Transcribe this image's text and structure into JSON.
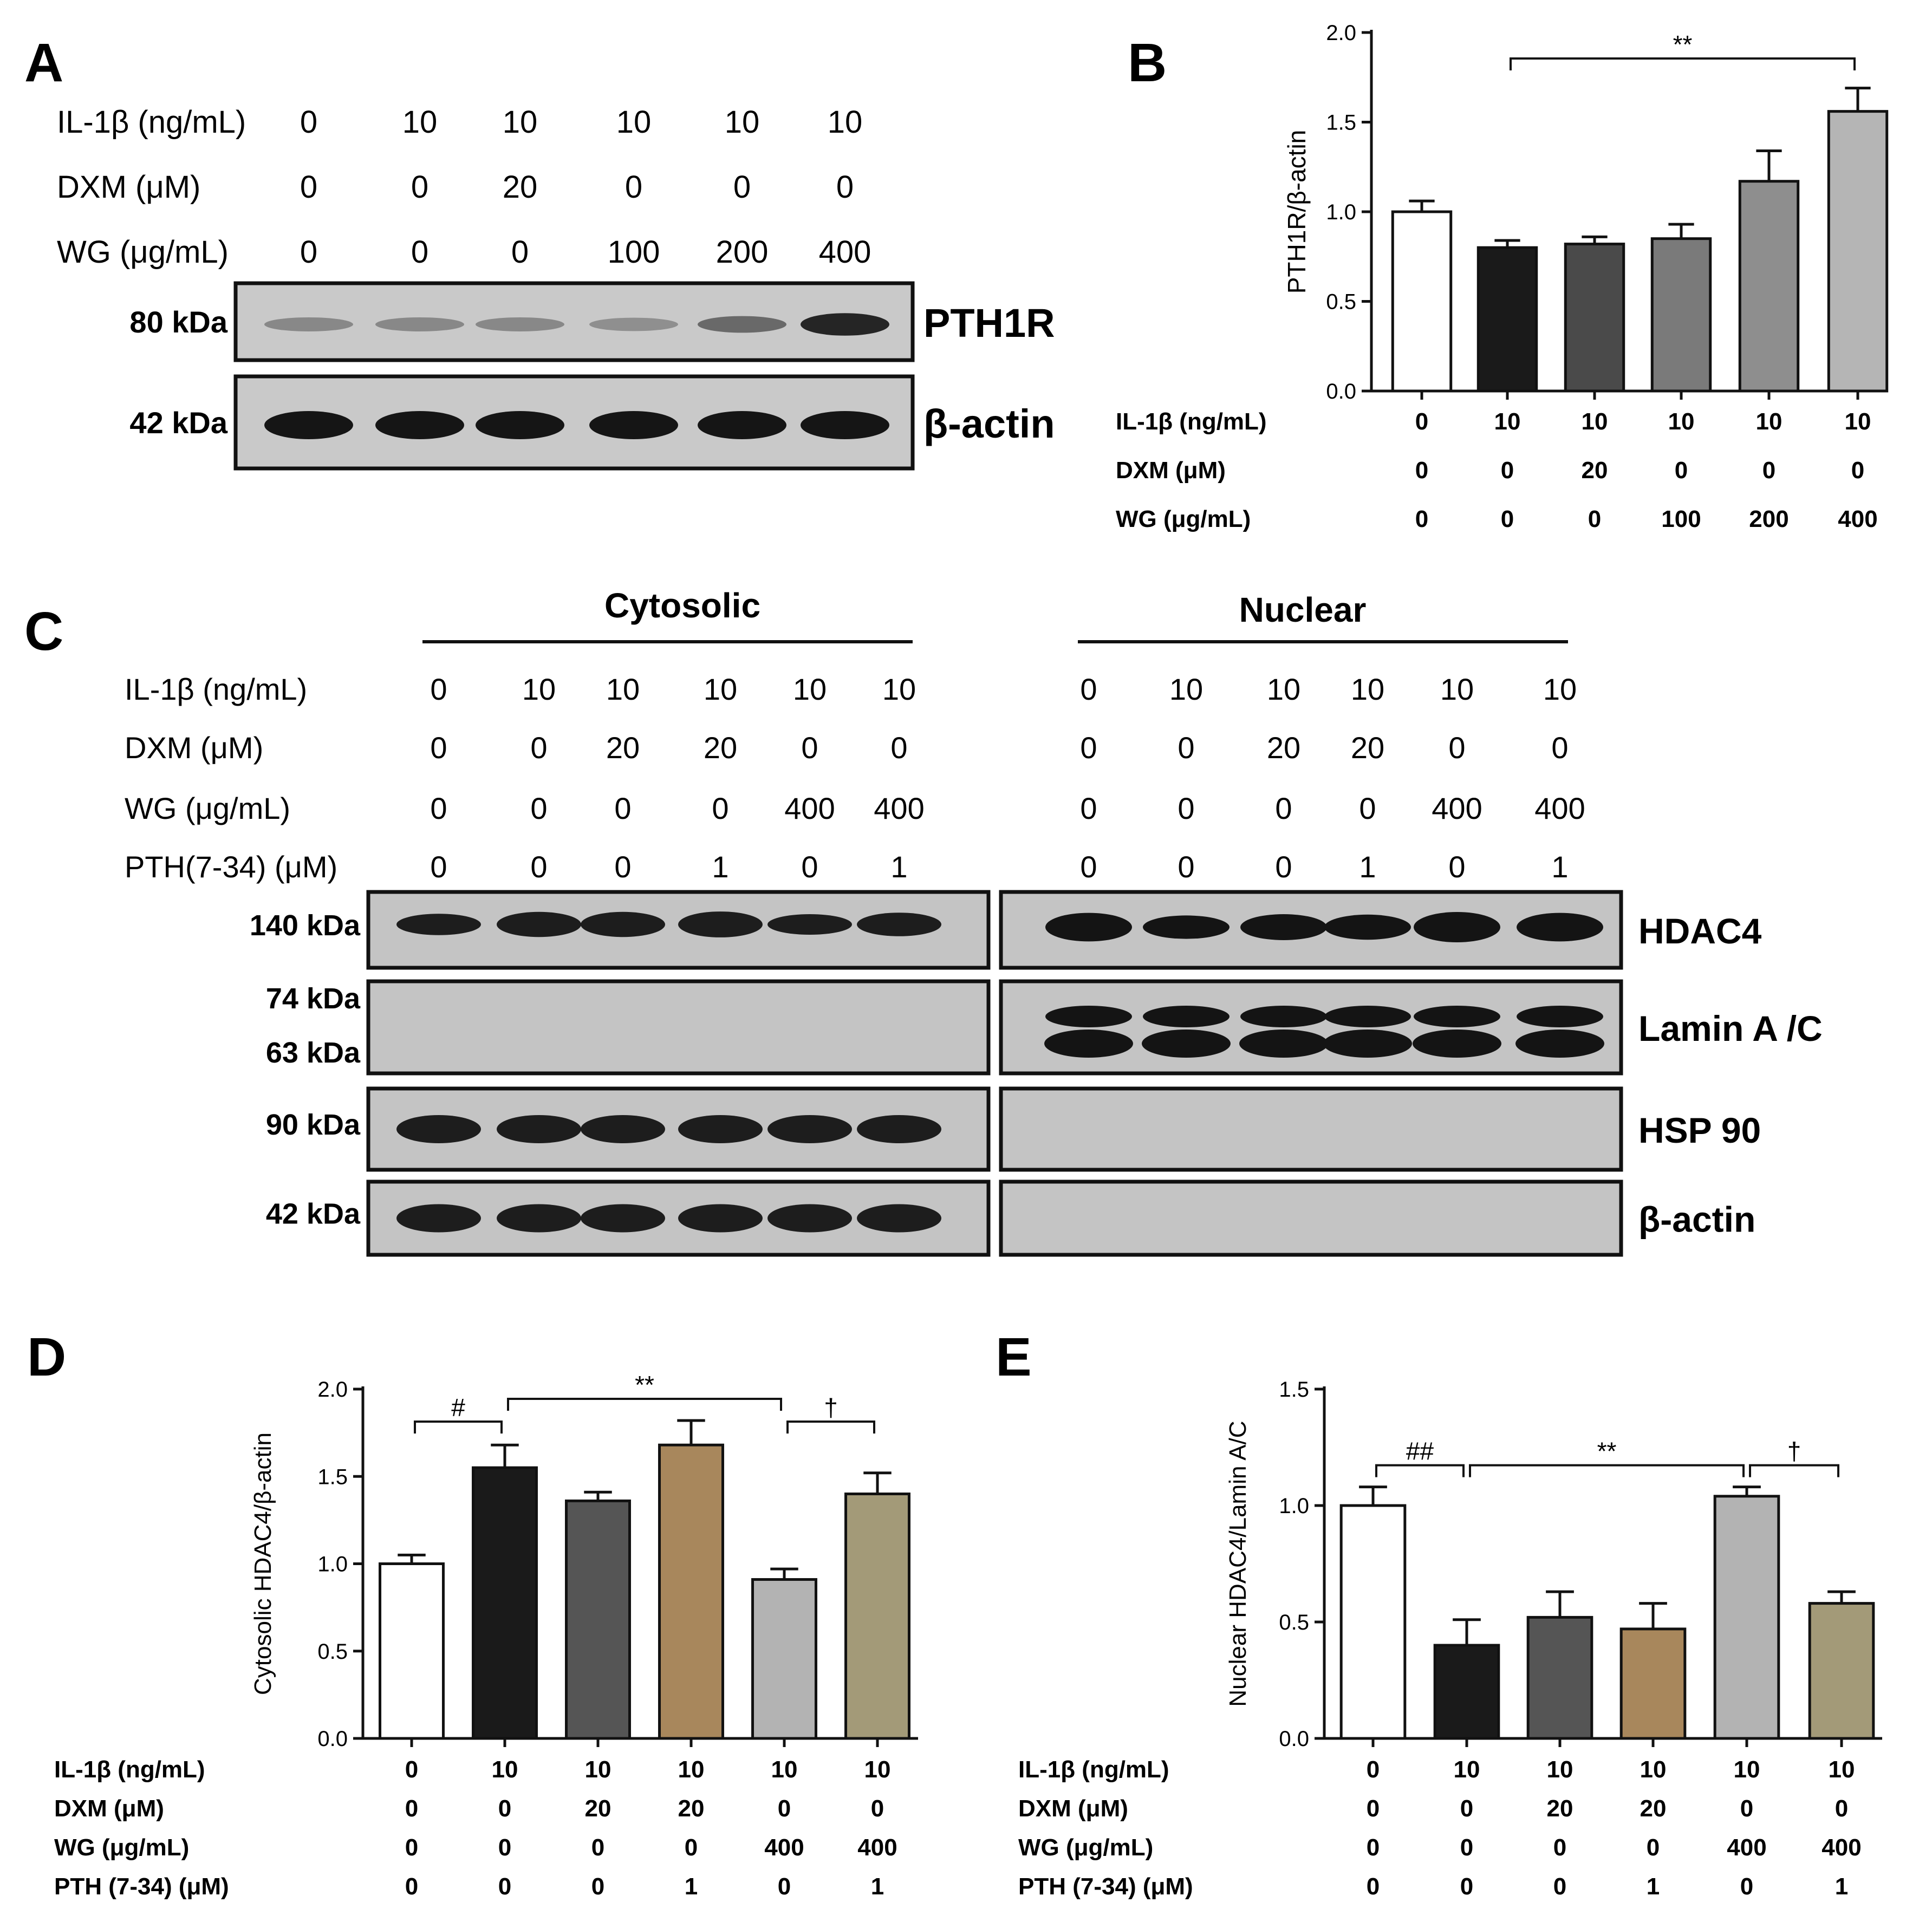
{
  "panel_letters": {
    "a": "A",
    "b": "B",
    "c": "C",
    "d": "D",
    "e": "E"
  },
  "panel_a": {
    "rows": [
      {
        "label": "IL-1β (ng/mL)",
        "values": [
          "0",
          "10",
          "10",
          "10",
          "10",
          "10"
        ]
      },
      {
        "label": "DXM (μM)",
        "values": [
          "0",
          "0",
          "20",
          "0",
          "0",
          "0"
        ]
      },
      {
        "label": "WG (μg/mL)",
        "values": [
          "0",
          "0",
          "0",
          "100",
          "200",
          "400"
        ]
      }
    ],
    "blots": [
      {
        "kda": "80 kDa",
        "protein": "PTH1R",
        "intensities": [
          0.25,
          0.25,
          0.25,
          0.2,
          0.45,
          0.9
        ]
      },
      {
        "kda": "42 kDa",
        "protein": "β-actin",
        "intensities": [
          1,
          1,
          1,
          1,
          1,
          1
        ]
      }
    ]
  },
  "panel_c": {
    "headers": {
      "left": "Cytosolic",
      "right": "Nuclear"
    },
    "rows": [
      {
        "label": "IL-1β (ng/mL)",
        "values": [
          "0",
          "10",
          "10",
          "10",
          "10",
          "10"
        ]
      },
      {
        "label": "DXM (μM)",
        "values": [
          "0",
          "0",
          "20",
          "20",
          "0",
          "0"
        ]
      },
      {
        "label": "WG (μg/mL)",
        "values": [
          "0",
          "0",
          "0",
          "0",
          "400",
          "400"
        ]
      },
      {
        "label": "PTH(7-34) (μM)",
        "values": [
          "0",
          "0",
          "0",
          "1",
          "0",
          "1"
        ]
      }
    ],
    "blots": [
      {
        "kda": [
          "140 kDa"
        ],
        "protein": "HDAC4"
      },
      {
        "kda": [
          "74 kDa",
          "63 kDa"
        ],
        "protein": "Lamin A /C"
      },
      {
        "kda": [
          "90 kDa"
        ],
        "protein": "HSP 90"
      },
      {
        "kda": [
          "42 kDa"
        ],
        "protein": "β-actin"
      }
    ]
  },
  "chart_data": [
    {
      "panel": "B",
      "type": "bar",
      "ylabel": "PTH1R/β-actin",
      "ylim": [
        0,
        2.0
      ],
      "yticks": [
        "0.0",
        "0.5",
        "1.0",
        "1.5",
        "2.0"
      ],
      "values": [
        1.0,
        0.8,
        0.82,
        0.85,
        1.17,
        1.56
      ],
      "errors": [
        0.06,
        0.04,
        0.04,
        0.08,
        0.17,
        0.13
      ],
      "colors": [
        "#ffffff",
        "#1a1a1a",
        "#4a4a4a",
        "#7a7a7a",
        "#8e8e8e",
        "#b5b5b5"
      ],
      "condition_rows": [
        {
          "label": "IL-1β (ng/mL)",
          "values": [
            "0",
            "10",
            "10",
            "10",
            "10",
            "10"
          ]
        },
        {
          "label": "DXM (μM)",
          "values": [
            "0",
            "0",
            "20",
            "0",
            "0",
            "0"
          ]
        },
        {
          "label": "WG (μg/mL)",
          "values": [
            "0",
            "0",
            "0",
            "100",
            "200",
            "400"
          ]
        }
      ],
      "annotations": [
        {
          "from": 1,
          "to": 5,
          "text": "**"
        }
      ]
    },
    {
      "panel": "D",
      "type": "bar",
      "ylabel": "Cytosolic HDAC4/β-actin",
      "ylim": [
        0,
        2.0
      ],
      "yticks": [
        "0.0",
        "0.5",
        "1.0",
        "1.5",
        "2.0"
      ],
      "values": [
        1.0,
        1.55,
        1.36,
        1.68,
        0.91,
        1.4
      ],
      "errors": [
        0.05,
        0.13,
        0.05,
        0.14,
        0.06,
        0.12
      ],
      "colors": [
        "#ffffff",
        "#1a1a1a",
        "#555555",
        "#a8875c",
        "#b3b3b3",
        "#a39a78"
      ],
      "condition_rows": [
        {
          "label": "IL-1β (ng/mL)",
          "values": [
            "0",
            "10",
            "10",
            "10",
            "10",
            "10"
          ]
        },
        {
          "label": "DXM (μM)",
          "values": [
            "0",
            "0",
            "20",
            "20",
            "0",
            "0"
          ]
        },
        {
          "label": "WG (μg/mL)",
          "values": [
            "0",
            "0",
            "0",
            "0",
            "400",
            "400"
          ]
        },
        {
          "label": "PTH (7-34) (μM)",
          "values": [
            "0",
            "0",
            "0",
            "1",
            "0",
            "1"
          ]
        }
      ],
      "annotations": [
        {
          "from": 0,
          "to": 1,
          "text": "#"
        },
        {
          "from": 1,
          "to": 4,
          "text": "**"
        },
        {
          "from": 4,
          "to": 5,
          "text": "†"
        }
      ]
    },
    {
      "panel": "E",
      "type": "bar",
      "ylabel": "Nuclear HDAC4/Lamin A/C",
      "ylim": [
        0,
        1.5
      ],
      "yticks": [
        "0.0",
        "0.5",
        "1.0",
        "1.5"
      ],
      "values": [
        1.0,
        0.4,
        0.52,
        0.47,
        1.04,
        0.58
      ],
      "errors": [
        0.08,
        0.11,
        0.11,
        0.11,
        0.04,
        0.05
      ],
      "colors": [
        "#ffffff",
        "#1a1a1a",
        "#555555",
        "#a8875c",
        "#b3b3b3",
        "#a39a78"
      ],
      "condition_rows": [
        {
          "label": "IL-1β (ng/mL)",
          "values": [
            "0",
            "10",
            "10",
            "10",
            "10",
            "10"
          ]
        },
        {
          "label": "DXM (μM)",
          "values": [
            "0",
            "0",
            "20",
            "20",
            "0",
            "0"
          ]
        },
        {
          "label": "WG (μg/mL)",
          "values": [
            "0",
            "0",
            "0",
            "0",
            "400",
            "400"
          ]
        },
        {
          "label": "PTH (7-34) (μM)",
          "values": [
            "0",
            "0",
            "0",
            "1",
            "0",
            "1"
          ]
        }
      ],
      "annotations": [
        {
          "from": 0,
          "to": 1,
          "text": "##"
        },
        {
          "from": 1,
          "to": 4,
          "text": "**"
        },
        {
          "from": 4,
          "to": 5,
          "text": "†"
        }
      ]
    }
  ]
}
